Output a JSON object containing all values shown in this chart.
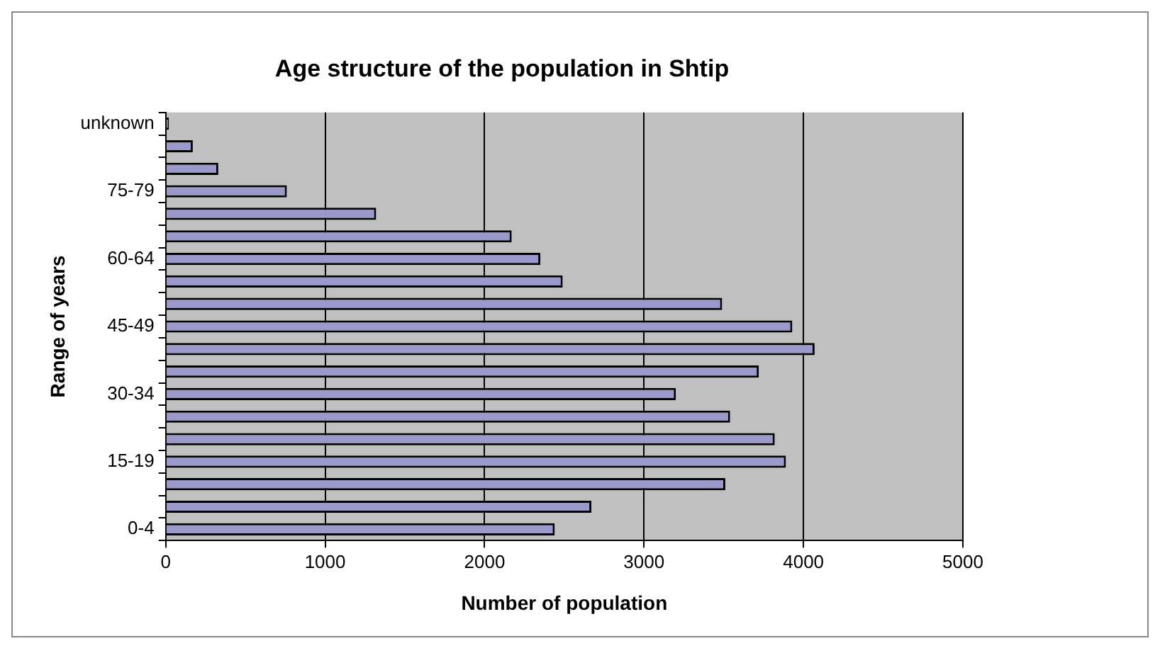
{
  "chart_data": {
    "type": "bar",
    "orientation": "horizontal",
    "title": "Age structure of the population in Shtip",
    "xlabel": "Number of population",
    "ylabel": "Range of years",
    "categories": [
      "unknown",
      null,
      null,
      "75-79",
      null,
      null,
      "60-64",
      null,
      null,
      "45-49",
      null,
      null,
      "30-34",
      null,
      null,
      "15-19",
      null,
      null,
      "0-4"
    ],
    "values": [
      20,
      170,
      330,
      760,
      1320,
      2170,
      2350,
      2490,
      3490,
      3930,
      4070,
      3720,
      3200,
      3540,
      3820,
      3890,
      3510,
      2670,
      2440
    ],
    "color": "#9999cc",
    "xlim": [
      0,
      5000
    ],
    "xticks": [
      0,
      1000,
      2000,
      3000,
      4000,
      5000
    ],
    "grid": "x"
  }
}
